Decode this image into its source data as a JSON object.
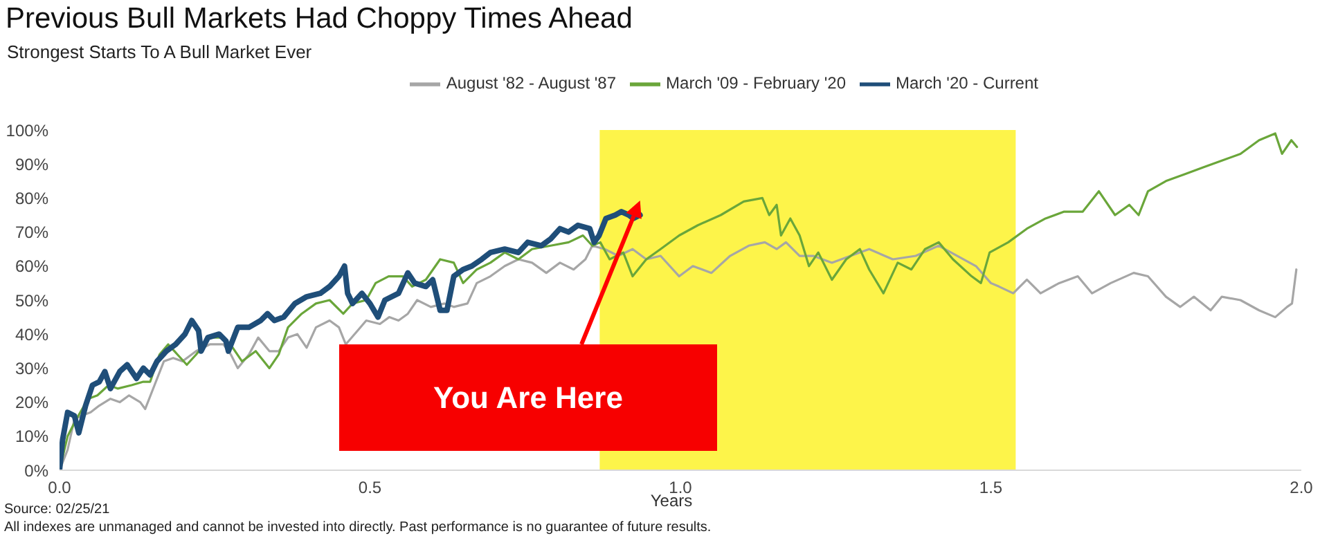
{
  "chart_data": {
    "type": "line",
    "title": "Previous Bull Markets Had Choppy Times Ahead",
    "subtitle": "Strongest Starts To A Bull Market Ever",
    "xlabel": "Years",
    "annotations": [
      {
        "text": "You Are Here",
        "x": 0.935,
        "y": 75
      },
      "Source: 02/25/21",
      "All indexes are unmanaged and cannot be invested into directly. Past performance is no guarantee of future results."
    ],
    "xlim": [
      0,
      2
    ],
    "xticks": [
      {
        "value": 0,
        "label": "0.0"
      },
      {
        "value": 0.5,
        "label": "0.5"
      },
      {
        "value": 1,
        "label": "1.0"
      },
      {
        "value": 1.5,
        "label": "1.5"
      },
      {
        "value": 2,
        "label": "2.0"
      }
    ],
    "ylim": [
      0,
      100
    ],
    "yticks": [
      {
        "value": 0,
        "label": "0%"
      },
      {
        "value": 10,
        "label": "10%"
      },
      {
        "value": 20,
        "label": "20%"
      },
      {
        "value": 30,
        "label": "30%"
      },
      {
        "value": 40,
        "label": "40%"
      },
      {
        "value": 50,
        "label": "50%"
      },
      {
        "value": 60,
        "label": "60%"
      },
      {
        "value": 70,
        "label": "70%"
      },
      {
        "value": 80,
        "label": "80%"
      },
      {
        "value": 90,
        "label": "90%"
      },
      {
        "value": 100,
        "label": "100%"
      }
    ],
    "grid": false,
    "legend": "top",
    "marker": "none",
    "line_style": "solid",
    "bands": [
      {
        "axis": "x",
        "from": 0.87,
        "to": 1.54,
        "color": "#fdf44a"
      }
    ],
    "series": [
      {
        "name": "August '82 - August '87",
        "color": "#a6a6a6",
        "x": [
          0,
          0.013,
          0.024,
          0.035,
          0.05,
          0.064,
          0.082,
          0.097,
          0.112,
          0.13,
          0.138,
          0.153,
          0.168,
          0.183,
          0.198,
          0.22,
          0.242,
          0.264,
          0.276,
          0.287,
          0.305,
          0.32,
          0.338,
          0.353,
          0.368,
          0.383,
          0.398,
          0.413,
          0.435,
          0.45,
          0.461,
          0.48,
          0.494,
          0.516,
          0.531,
          0.546,
          0.561,
          0.576,
          0.598,
          0.62,
          0.635,
          0.657,
          0.672,
          0.694,
          0.717,
          0.739,
          0.761,
          0.784,
          0.806,
          0.828,
          0.847,
          0.858,
          0.878,
          0.9,
          0.923,
          0.945,
          0.968,
          0.998,
          1.02,
          1.05,
          1.08,
          1.11,
          1.136,
          1.155,
          1.17,
          1.192,
          1.214,
          1.244,
          1.274,
          1.304,
          1.342,
          1.379,
          1.416,
          1.446,
          1.476,
          1.5,
          1.513,
          1.536,
          1.558,
          1.58,
          1.61,
          1.64,
          1.663,
          1.693,
          1.73,
          1.753,
          1.782,
          1.805,
          1.827,
          1.854,
          1.872,
          1.902,
          1.932,
          1.958,
          1.977,
          1.985,
          1.992
        ],
        "values": [
          0,
          6,
          15,
          16,
          17,
          19,
          21,
          20,
          22,
          20,
          18,
          25,
          32,
          33,
          32,
          35,
          37,
          37,
          34,
          30,
          34,
          39,
          35,
          35,
          39,
          40,
          36,
          42,
          44,
          42,
          37,
          41,
          44,
          43,
          45,
          44,
          46,
          50,
          48,
          49,
          48,
          49,
          55,
          57,
          60,
          62,
          61,
          58,
          61,
          59,
          62,
          66,
          65,
          63,
          65,
          62,
          63,
          57,
          60,
          58,
          63,
          66,
          67,
          65,
          67,
          63,
          63,
          61,
          63,
          65,
          62,
          63,
          66,
          63,
          60,
          55,
          54,
          52,
          56,
          52,
          55,
          57,
          52,
          55,
          58,
          57,
          51,
          48,
          51,
          47,
          51,
          50,
          47,
          45,
          48,
          49,
          59
        ]
      },
      {
        "name": "March '09 - February '20",
        "color": "#6aa63a",
        "x": [
          0,
          0.013,
          0.027,
          0.046,
          0.061,
          0.079,
          0.094,
          0.116,
          0.135,
          0.146,
          0.161,
          0.175,
          0.19,
          0.205,
          0.22,
          0.242,
          0.264,
          0.279,
          0.294,
          0.316,
          0.338,
          0.353,
          0.368,
          0.39,
          0.413,
          0.435,
          0.457,
          0.472,
          0.494,
          0.509,
          0.53,
          0.553,
          0.568,
          0.59,
          0.613,
          0.635,
          0.65,
          0.672,
          0.694,
          0.717,
          0.739,
          0.761,
          0.791,
          0.82,
          0.843,
          0.858,
          0.871,
          0.886,
          0.908,
          0.923,
          0.945,
          0.968,
          0.998,
          1.028,
          1.065,
          1.102,
          1.132,
          1.143,
          1.155,
          1.162,
          1.177,
          1.192,
          1.207,
          1.222,
          1.244,
          1.267,
          1.289,
          1.304,
          1.327,
          1.35,
          1.372,
          1.394,
          1.416,
          1.439,
          1.469,
          1.484,
          1.498,
          1.528,
          1.558,
          1.588,
          1.618,
          1.648,
          1.674,
          1.7,
          1.723,
          1.738,
          1.753,
          1.782,
          1.812,
          1.842,
          1.872,
          1.902,
          1.932,
          1.958,
          1.969,
          1.984,
          1.993
        ],
        "values": [
          0,
          10,
          15,
          21,
          22,
          25,
          24,
          25,
          26,
          26,
          34,
          37,
          34,
          31,
          34,
          39,
          39,
          36,
          32,
          35,
          30,
          34,
          42,
          46,
          49,
          50,
          46,
          49,
          50,
          55,
          57,
          57,
          54,
          56,
          62,
          61,
          55,
          59,
          61,
          64,
          62,
          65,
          66,
          67,
          69,
          66,
          67,
          62,
          64,
          57,
          62,
          65,
          69,
          72,
          75,
          79,
          80,
          75,
          78,
          69,
          74,
          69,
          60,
          64,
          56,
          62,
          65,
          59,
          52,
          61,
          59,
          65,
          67,
          62,
          57,
          55,
          64,
          67,
          71,
          74,
          76,
          76,
          82,
          75,
          78,
          75,
          82,
          85,
          87,
          89,
          91,
          93,
          97,
          99,
          93,
          97,
          95
        ]
      },
      {
        "name": "March '20 - Current",
        "color": "#1f4e79",
        "x": [
          0,
          0.005,
          0.013,
          0.024,
          0.031,
          0.042,
          0.053,
          0.064,
          0.073,
          0.082,
          0.097,
          0.109,
          0.124,
          0.135,
          0.146,
          0.157,
          0.172,
          0.187,
          0.202,
          0.213,
          0.224,
          0.228,
          0.239,
          0.257,
          0.268,
          0.272,
          0.287,
          0.305,
          0.324,
          0.335,
          0.346,
          0.361,
          0.379,
          0.398,
          0.42,
          0.435,
          0.45,
          0.459,
          0.464,
          0.472,
          0.487,
          0.5,
          0.513,
          0.524,
          0.546,
          0.561,
          0.572,
          0.59,
          0.601,
          0.613,
          0.624,
          0.635,
          0.65,
          0.664,
          0.68,
          0.694,
          0.717,
          0.739,
          0.754,
          0.776,
          0.791,
          0.806,
          0.82,
          0.835,
          0.854,
          0.861,
          0.869,
          0.88,
          0.895,
          0.905,
          0.917,
          0.924,
          0.935
        ],
        "values": [
          0,
          9,
          17,
          16,
          11,
          19,
          25,
          26,
          29,
          24,
          29,
          31,
          27,
          30,
          28,
          32,
          35,
          37,
          40,
          44,
          41,
          35,
          39,
          40,
          38,
          35,
          42,
          42,
          44,
          46,
          44,
          45,
          49,
          51,
          52,
          54,
          57,
          60,
          52,
          49,
          52,
          49,
          45,
          50,
          52,
          58,
          55,
          54,
          56,
          47,
          47,
          57,
          59,
          60,
          62,
          64,
          65,
          64,
          67,
          66,
          68,
          71,
          70,
          72,
          71,
          67,
          69,
          74,
          75,
          76,
          75,
          74,
          75
        ]
      }
    ]
  }
}
